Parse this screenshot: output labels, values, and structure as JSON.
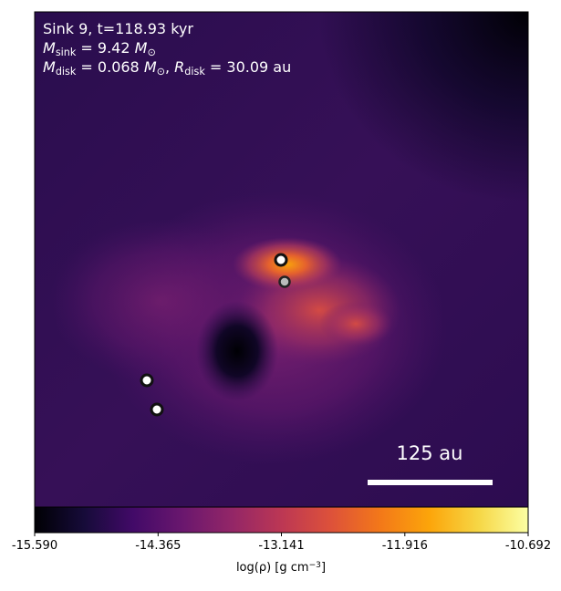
{
  "chart_data": {
    "type": "heatmap",
    "annotations": [
      [
        {
          "text": "Sink 9, t=118.93 kyr",
          "style": "normal"
        }
      ],
      [
        {
          "text": "M",
          "style": "italic"
        },
        {
          "text": "sink",
          "style": "sub"
        },
        {
          "text": " = 9.42 ",
          "style": "normal"
        },
        {
          "text": "M",
          "style": "italic"
        },
        {
          "text": "⊙",
          "style": "sub"
        }
      ],
      [
        {
          "text": "M",
          "style": "italic"
        },
        {
          "text": "disk",
          "style": "sub"
        },
        {
          "text": " = 0.068 ",
          "style": "normal"
        },
        {
          "text": "M",
          "style": "italic"
        },
        {
          "text": "⊙",
          "style": "sub"
        },
        {
          "text": ", ",
          "style": "normal"
        },
        {
          "text": "R",
          "style": "italic"
        },
        {
          "text": "disk",
          "style": "sub"
        },
        {
          "text": " = 30.09 au",
          "style": "normal"
        }
      ]
    ],
    "scalebar_label": "125 au",
    "colorbar": {
      "label": [
        {
          "text": "log(ρ) [g cm",
          "style": "normal"
        },
        {
          "text": "−3",
          "style": "sup"
        },
        {
          "text": "]",
          "style": "normal"
        }
      ],
      "lim": [
        -15.59,
        -10.692
      ],
      "ticks": [
        {
          "value": -15.59,
          "label": "-15.590"
        },
        {
          "value": -14.365,
          "label": "-14.365"
        },
        {
          "value": -13.141,
          "label": "-13.141"
        },
        {
          "value": -11.916,
          "label": "-11.916"
        },
        {
          "value": -10.692,
          "label": "-10.692"
        }
      ],
      "colormap": [
        "#000004",
        "#160b39",
        "#420a68",
        "#6a176e",
        "#932667",
        "#bc3754",
        "#dd513a",
        "#f37819",
        "#fca50a",
        "#f6d746",
        "#fcffa4"
      ]
    }
  }
}
